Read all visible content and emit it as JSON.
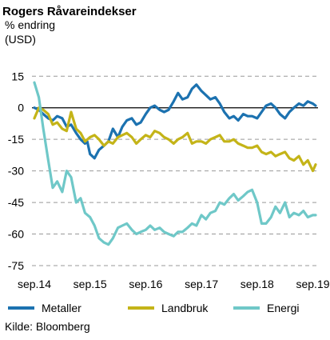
{
  "chart_data": {
    "type": "line",
    "title": "Rogers Råvareindekser",
    "subtitle_lines": [
      "% endring",
      "(USD)"
    ],
    "source": "Kilde: Bloomberg",
    "y_ticks": [
      15,
      0,
      -15,
      -30,
      -45,
      -60,
      -75
    ],
    "ylim": [
      -75,
      17
    ],
    "x_tick_labels": [
      "sep.14",
      "sep.15",
      "sep.16",
      "sep.17",
      "sep.18",
      "sep.19"
    ],
    "x_ticks": [
      2014.67,
      2015.67,
      2016.67,
      2017.67,
      2018.67,
      2019.67
    ],
    "xlim": [
      2014.67,
      2019.72
    ],
    "grid": "horizontal-dashed",
    "legend_position": "bottom",
    "colors": {
      "Metaller": "#1c72b0",
      "Landbruk": "#c4b418",
      "Energi": "#6fc8c8",
      "grid": "#999999",
      "zero": "#000000"
    },
    "series": [
      {
        "name": "Metaller",
        "x": [
          2014.67,
          2014.75,
          2014.83,
          2014.92,
          2015.0,
          2015.08,
          2015.17,
          2015.25,
          2015.33,
          2015.42,
          2015.5,
          2015.58,
          2015.62,
          2015.67,
          2015.75,
          2015.83,
          2015.92,
          2016.0,
          2016.08,
          2016.17,
          2016.25,
          2016.33,
          2016.42,
          2016.5,
          2016.58,
          2016.67,
          2016.75,
          2016.83,
          2016.92,
          2017.0,
          2017.08,
          2017.17,
          2017.25,
          2017.33,
          2017.42,
          2017.5,
          2017.58,
          2017.67,
          2017.75,
          2017.83,
          2017.92,
          2018.0,
          2018.08,
          2018.17,
          2018.25,
          2018.33,
          2018.42,
          2018.5,
          2018.58,
          2018.67,
          2018.75,
          2018.83,
          2018.92,
          2019.0,
          2019.08,
          2019.17,
          2019.25,
          2019.33,
          2019.42,
          2019.5,
          2019.58,
          2019.67,
          2019.72
        ],
        "values": [
          0,
          -1,
          -3,
          -5,
          -6,
          -4,
          -5,
          -9,
          -8,
          -12,
          -15,
          -17,
          -16,
          -22,
          -24,
          -20,
          -18,
          -16,
          -10,
          -14,
          -9,
          -6,
          -5,
          -8,
          -7,
          -3,
          0,
          1,
          -1,
          -2,
          -1,
          3,
          7,
          4,
          5,
          9,
          11,
          8,
          6,
          4,
          5,
          2,
          -2,
          -5,
          -4,
          -6,
          -3,
          -4,
          -4,
          -5,
          -2,
          1,
          2,
          0,
          -3,
          -5,
          -2,
          0,
          2,
          1,
          3,
          2,
          1
        ]
      },
      {
        "name": "Landbruk",
        "x": [
          2014.67,
          2014.75,
          2014.83,
          2014.92,
          2015.0,
          2015.08,
          2015.17,
          2015.25,
          2015.33,
          2015.42,
          2015.5,
          2015.58,
          2015.67,
          2015.75,
          2015.83,
          2015.92,
          2016.0,
          2016.08,
          2016.17,
          2016.25,
          2016.33,
          2016.42,
          2016.5,
          2016.58,
          2016.67,
          2016.75,
          2016.83,
          2016.92,
          2017.0,
          2017.08,
          2017.17,
          2017.25,
          2017.33,
          2017.42,
          2017.5,
          2017.58,
          2017.67,
          2017.75,
          2017.83,
          2017.92,
          2018.0,
          2018.08,
          2018.17,
          2018.25,
          2018.33,
          2018.42,
          2018.5,
          2018.58,
          2018.67,
          2018.75,
          2018.83,
          2018.92,
          2019.0,
          2019.08,
          2019.17,
          2019.25,
          2019.33,
          2019.42,
          2019.5,
          2019.58,
          2019.67,
          2019.72
        ],
        "values": [
          -5,
          0,
          -1,
          -3,
          -8,
          -7,
          -10,
          -11,
          -2,
          -10,
          -12,
          -16,
          -14,
          -13,
          -15,
          -18,
          -16,
          -17,
          -14,
          -13,
          -12,
          -14,
          -17,
          -15,
          -13,
          -14,
          -11,
          -12,
          -14,
          -15,
          -17,
          -15,
          -14,
          -12,
          -17,
          -16,
          -16,
          -17,
          -15,
          -14,
          -13,
          -16,
          -16,
          -15,
          -17,
          -18,
          -19,
          -19,
          -18,
          -21,
          -22,
          -21,
          -23,
          -22,
          -21,
          -24,
          -25,
          -23,
          -27,
          -25,
          -30,
          -27
        ]
      },
      {
        "name": "Energi",
        "x": [
          2014.67,
          2014.75,
          2014.83,
          2014.92,
          2015.0,
          2015.08,
          2015.17,
          2015.25,
          2015.33,
          2015.42,
          2015.5,
          2015.58,
          2015.67,
          2015.75,
          2015.83,
          2015.92,
          2016.0,
          2016.08,
          2016.17,
          2016.25,
          2016.33,
          2016.42,
          2016.5,
          2016.58,
          2016.67,
          2016.75,
          2016.83,
          2016.92,
          2017.0,
          2017.08,
          2017.17,
          2017.25,
          2017.33,
          2017.42,
          2017.5,
          2017.58,
          2017.67,
          2017.75,
          2017.83,
          2017.92,
          2018.0,
          2018.08,
          2018.17,
          2018.25,
          2018.33,
          2018.42,
          2018.5,
          2018.58,
          2018.67,
          2018.75,
          2018.83,
          2018.92,
          2019.0,
          2019.08,
          2019.17,
          2019.25,
          2019.33,
          2019.42,
          2019.5,
          2019.58,
          2019.67,
          2019.72
        ],
        "values": [
          12,
          5,
          -10,
          -25,
          -38,
          -35,
          -40,
          -30,
          -33,
          -45,
          -43,
          -50,
          -52,
          -56,
          -62,
          -64,
          -65,
          -62,
          -57,
          -56,
          -55,
          -58,
          -60,
          -59,
          -58,
          -56,
          -58,
          -57,
          -59,
          -60,
          -61,
          -59,
          -59,
          -57,
          -55,
          -56,
          -51,
          -53,
          -50,
          -49,
          -45,
          -46,
          -43,
          -41,
          -44,
          -42,
          -40,
          -39,
          -45,
          -55,
          -55,
          -52,
          -47,
          -50,
          -45,
          -52,
          -50,
          -51,
          -49,
          -52,
          -51,
          -51
        ]
      }
    ]
  }
}
